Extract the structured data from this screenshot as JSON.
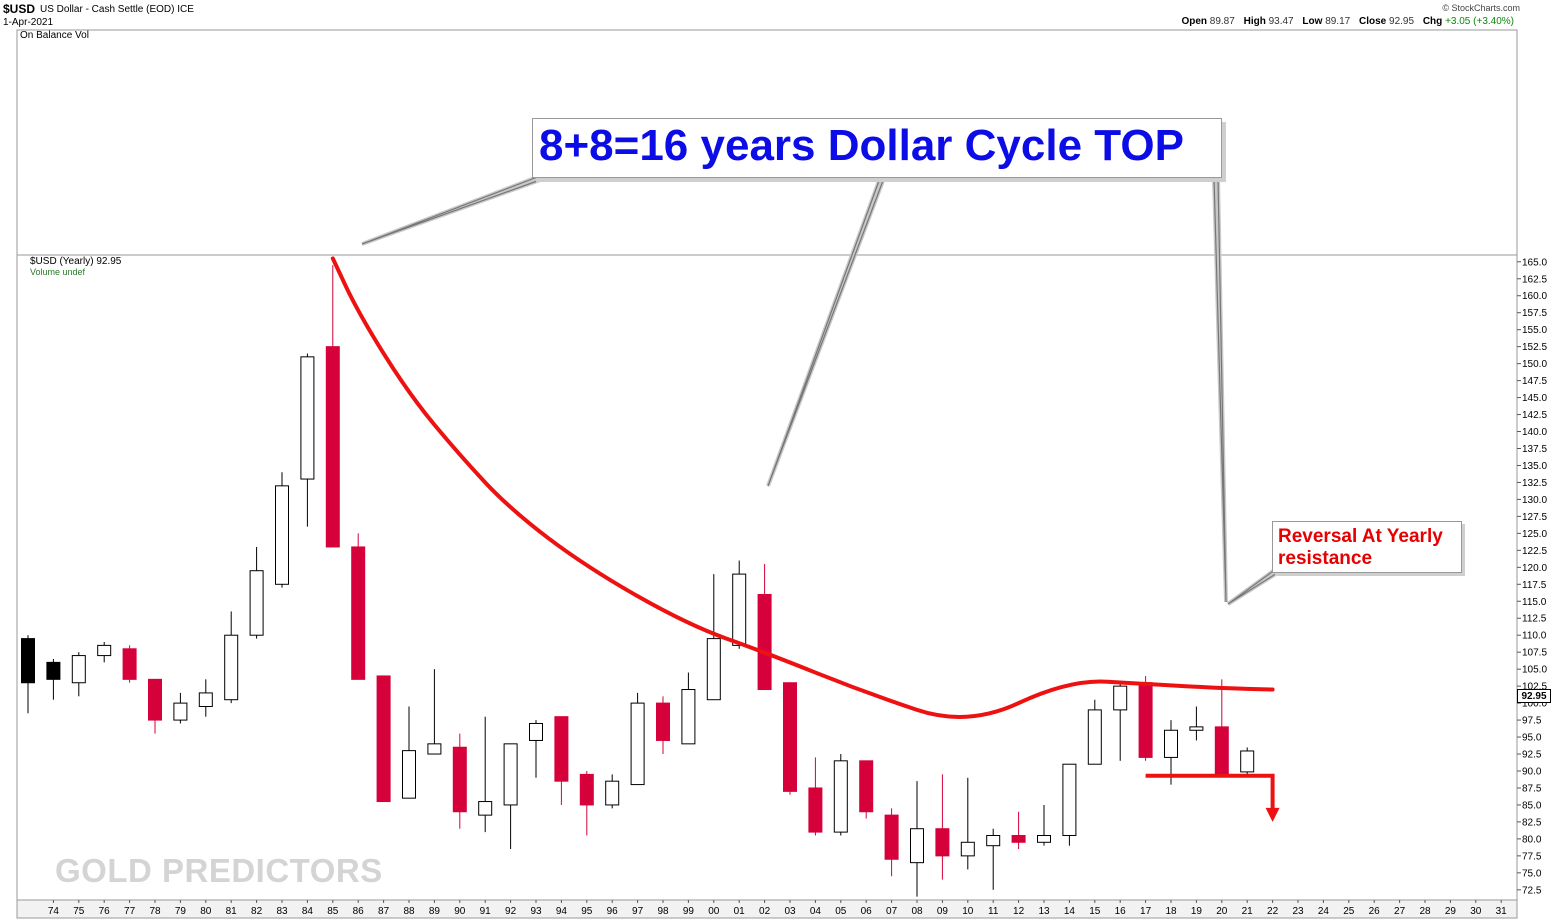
{
  "header": {
    "symbol": "$USD",
    "name": "US Dollar - Cash Settle (EOD) ICE",
    "date": "1-Apr-2021",
    "copyright": "© StockCharts.com",
    "open_label": "Open",
    "open": "89.87",
    "high_label": "High",
    "high": "93.47",
    "low_label": "Low",
    "low": "89.17",
    "close_label": "Close",
    "close": "92.95",
    "chg_label": "Chg",
    "chg": "+3.05 (+3.40%)",
    "chg_color": "#0a8a0a"
  },
  "top_pane": {
    "label": "On Balance Vol"
  },
  "price_pane": {
    "label": "$USD (Yearly) 92.95",
    "sub_label": "Volume undef"
  },
  "annotations": {
    "title": "8+8=16 years Dollar Cycle TOP",
    "title_color": "#0c0ce6",
    "reversal": "Reversal At Yearly resistance",
    "reversal_color": "#e60000"
  },
  "watermark": "GOLD PREDICTORS",
  "last_price_tag": "92.95",
  "colors": {
    "up": "#ffffff",
    "down": "#d6003a",
    "early": "#000000",
    "curve": "#ee1111",
    "grid": "#dddddd"
  },
  "chart_data": {
    "type": "candlestick",
    "title": "$USD (Yearly)",
    "y_axis": {
      "range": [
        71.0,
        166.0
      ],
      "ticks": [
        "72.5",
        "75.0",
        "77.5",
        "80.0",
        "82.5",
        "85.0",
        "87.5",
        "90.0",
        "92.5",
        "95.0",
        "97.5",
        "100.0",
        "102.5",
        "105.0",
        "107.5",
        "110.0",
        "112.5",
        "115.0",
        "117.5",
        "120.0",
        "122.5",
        "125.0",
        "127.5",
        "130.0",
        "132.5",
        "135.0",
        "137.5",
        "140.0",
        "142.5",
        "145.0",
        "147.5",
        "150.0",
        "152.5",
        "155.0",
        "157.5",
        "160.0",
        "162.5",
        "165.0"
      ]
    },
    "x_axis": {
      "ticks": [
        "74",
        "75",
        "76",
        "77",
        "78",
        "79",
        "80",
        "81",
        "82",
        "83",
        "84",
        "85",
        "86",
        "87",
        "88",
        "89",
        "90",
        "91",
        "92",
        "93",
        "94",
        "95",
        "96",
        "97",
        "98",
        "99",
        "00",
        "01",
        "02",
        "03",
        "04",
        "05",
        "06",
        "07",
        "08",
        "09",
        "10",
        "11",
        "12",
        "13",
        "14",
        "15",
        "16",
        "17",
        "18",
        "19",
        "20",
        "21",
        "22",
        "23",
        "24",
        "25",
        "26",
        "27",
        "28",
        "29",
        "30",
        "31"
      ]
    },
    "candles": [
      {
        "year": "73",
        "open": 103.0,
        "high": 110.0,
        "low": 98.5,
        "close": 109.5,
        "style": "early"
      },
      {
        "year": "74",
        "open": 103.5,
        "high": 106.5,
        "low": 100.5,
        "close": 106.0,
        "style": "early"
      },
      {
        "year": "75",
        "open": 103.0,
        "high": 107.5,
        "low": 101.0,
        "close": 107.0,
        "style": "up"
      },
      {
        "year": "76",
        "open": 107.0,
        "high": 109.0,
        "low": 106.0,
        "close": 108.5,
        "style": "up"
      },
      {
        "year": "77",
        "open": 108.0,
        "high": 108.5,
        "low": 103.0,
        "close": 103.5,
        "style": "down"
      },
      {
        "year": "78",
        "open": 103.5,
        "high": 103.5,
        "low": 95.5,
        "close": 97.5,
        "style": "down"
      },
      {
        "year": "79",
        "open": 97.5,
        "high": 101.5,
        "low": 97.0,
        "close": 100.0,
        "style": "up"
      },
      {
        "year": "80",
        "open": 99.5,
        "high": 103.5,
        "low": 98.0,
        "close": 101.5,
        "style": "up"
      },
      {
        "year": "81",
        "open": 100.5,
        "high": 113.5,
        "low": 100.0,
        "close": 110.0,
        "style": "up"
      },
      {
        "year": "82",
        "open": 110.0,
        "high": 123.0,
        "low": 109.5,
        "close": 119.5,
        "style": "up"
      },
      {
        "year": "83",
        "open": 117.5,
        "high": 134.0,
        "low": 117.0,
        "close": 132.0,
        "style": "up"
      },
      {
        "year": "84",
        "open": 133.0,
        "high": 151.5,
        "low": 126.0,
        "close": 151.0,
        "style": "up"
      },
      {
        "year": "85",
        "open": 152.5,
        "high": 164.5,
        "low": 123.0,
        "close": 123.0,
        "style": "down"
      },
      {
        "year": "86",
        "open": 123.0,
        "high": 125.0,
        "low": 103.5,
        "close": 103.5,
        "style": "down"
      },
      {
        "year": "87",
        "open": 104.0,
        "high": 104.0,
        "low": 85.5,
        "close": 85.5,
        "style": "down"
      },
      {
        "year": "88",
        "open": 86.0,
        "high": 99.5,
        "low": 86.0,
        "close": 93.0,
        "style": "up"
      },
      {
        "year": "89",
        "open": 92.5,
        "high": 105.0,
        "low": 92.5,
        "close": 94.0,
        "style": "up"
      },
      {
        "year": "90",
        "open": 93.5,
        "high": 95.5,
        "low": 81.5,
        "close": 84.0,
        "style": "down"
      },
      {
        "year": "91",
        "open": 83.5,
        "high": 98.0,
        "low": 81.0,
        "close": 85.5,
        "style": "up"
      },
      {
        "year": "92",
        "open": 85.0,
        "high": 94.0,
        "low": 78.5,
        "close": 94.0,
        "style": "up"
      },
      {
        "year": "93",
        "open": 94.5,
        "high": 97.5,
        "low": 89.0,
        "close": 97.0,
        "style": "up"
      },
      {
        "year": "94",
        "open": 98.0,
        "high": 98.0,
        "low": 85.0,
        "close": 88.5,
        "style": "down"
      },
      {
        "year": "95",
        "open": 89.5,
        "high": 90.0,
        "low": 80.5,
        "close": 85.0,
        "style": "down"
      },
      {
        "year": "96",
        "open": 85.0,
        "high": 89.5,
        "low": 84.5,
        "close": 88.5,
        "style": "up"
      },
      {
        "year": "97",
        "open": 88.0,
        "high": 101.5,
        "low": 88.0,
        "close": 100.0,
        "style": "up"
      },
      {
        "year": "98",
        "open": 100.0,
        "high": 101.0,
        "low": 92.5,
        "close": 94.5,
        "style": "down"
      },
      {
        "year": "99",
        "open": 94.0,
        "high": 104.5,
        "low": 94.0,
        "close": 102.0,
        "style": "up"
      },
      {
        "year": "00",
        "open": 100.5,
        "high": 119.0,
        "low": 100.5,
        "close": 109.5,
        "style": "up"
      },
      {
        "year": "01",
        "open": 108.5,
        "high": 121.0,
        "low": 108.0,
        "close": 119.0,
        "style": "up"
      },
      {
        "year": "02",
        "open": 116.0,
        "high": 120.5,
        "low": 102.0,
        "close": 102.0,
        "style": "down"
      },
      {
        "year": "03",
        "open": 103.0,
        "high": 103.0,
        "low": 86.5,
        "close": 87.0,
        "style": "down"
      },
      {
        "year": "04",
        "open": 87.5,
        "high": 92.0,
        "low": 80.5,
        "close": 81.0,
        "style": "down"
      },
      {
        "year": "05",
        "open": 81.0,
        "high": 92.5,
        "low": 80.5,
        "close": 91.5,
        "style": "up"
      },
      {
        "year": "06",
        "open": 91.5,
        "high": 91.5,
        "low": 83.0,
        "close": 84.0,
        "style": "down"
      },
      {
        "year": "07",
        "open": 83.5,
        "high": 84.5,
        "low": 74.5,
        "close": 77.0,
        "style": "down"
      },
      {
        "year": "08",
        "open": 76.5,
        "high": 88.5,
        "low": 71.5,
        "close": 81.5,
        "style": "up"
      },
      {
        "year": "09",
        "open": 81.5,
        "high": 89.5,
        "low": 74.0,
        "close": 77.5,
        "style": "down"
      },
      {
        "year": "10",
        "open": 77.5,
        "high": 89.0,
        "low": 75.5,
        "close": 79.5,
        "style": "up"
      },
      {
        "year": "11",
        "open": 79.0,
        "high": 81.5,
        "low": 72.5,
        "close": 80.5,
        "style": "up"
      },
      {
        "year": "12",
        "open": 80.5,
        "high": 84.0,
        "low": 78.5,
        "close": 79.5,
        "style": "down"
      },
      {
        "year": "13",
        "open": 79.5,
        "high": 85.0,
        "low": 79.0,
        "close": 80.5,
        "style": "up"
      },
      {
        "year": "14",
        "open": 80.5,
        "high": 91.0,
        "low": 79.0,
        "close": 91.0,
        "style": "up"
      },
      {
        "year": "15",
        "open": 91.0,
        "high": 100.5,
        "low": 91.0,
        "close": 99.0,
        "style": "up"
      },
      {
        "year": "16",
        "open": 99.0,
        "high": 103.0,
        "low": 91.5,
        "close": 102.5,
        "style": "up"
      },
      {
        "year": "17",
        "open": 103.0,
        "high": 104.0,
        "low": 91.5,
        "close": 92.0,
        "style": "down"
      },
      {
        "year": "18",
        "open": 92.0,
        "high": 97.5,
        "low": 88.0,
        "close": 96.0,
        "style": "up"
      },
      {
        "year": "19",
        "open": 96.0,
        "high": 99.5,
        "low": 94.5,
        "close": 96.5,
        "style": "up"
      },
      {
        "year": "20",
        "open": 96.5,
        "high": 103.5,
        "low": 89.5,
        "close": 89.5,
        "style": "down"
      },
      {
        "year": "21",
        "open": 89.87,
        "high": 93.47,
        "low": 89.17,
        "close": 92.95,
        "style": "up"
      }
    ],
    "resistance_curve": [
      {
        "x": "85",
        "y": 165.5
      },
      {
        "x": "86",
        "y": 157.5
      },
      {
        "x": "88",
        "y": 145.5
      },
      {
        "x": "90",
        "y": 136.5
      },
      {
        "x": "92",
        "y": 128.5
      },
      {
        "x": "95",
        "y": 120.0
      },
      {
        "x": "99",
        "y": 111.5
      },
      {
        "x": "02",
        "y": 107.5
      },
      {
        "x": "06",
        "y": 101.5
      },
      {
        "x": "10",
        "y": 96.5
      },
      {
        "x": "14",
        "y": 103.5
      },
      {
        "x": "17",
        "y": 102.8
      },
      {
        "x": "20",
        "y": 102.2
      },
      {
        "x": "22",
        "y": 102.0
      }
    ],
    "support_line": {
      "y": 89.3,
      "from": "17",
      "to": "22",
      "arrow_to": 82.5
    },
    "legend": "none",
    "grid": true
  }
}
